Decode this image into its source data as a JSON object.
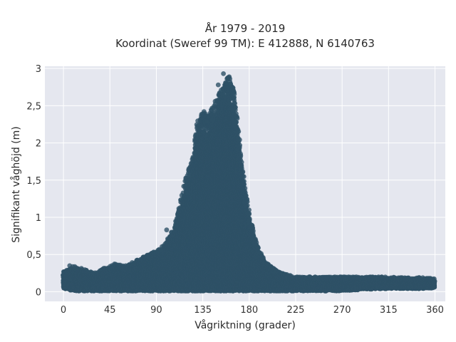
{
  "chart_data": {
    "type": "scatter",
    "title_lines": [
      "År 1979 - 2019",
      "Koordinat (Sweref 99 TM): E 412888, N 6140763"
    ],
    "xlabel": "Vågriktning (grader)",
    "ylabel": "Signifikant våghöjd (m)",
    "xlim": [
      -18,
      370
    ],
    "ylim": [
      -0.13,
      3.03
    ],
    "xticks": [
      0,
      45,
      90,
      135,
      180,
      225,
      270,
      315,
      360
    ],
    "xtick_labels": [
      "0",
      "45",
      "90",
      "135",
      "180",
      "225",
      "270",
      "315",
      "360"
    ],
    "yticks": [
      0,
      0.5,
      1,
      1.5,
      2,
      2.5,
      3
    ],
    "ytick_labels": [
      "0",
      "0,5",
      "1",
      "1,5",
      "2",
      "2,5",
      "3"
    ],
    "grid": true,
    "marker_color": "#2e5166",
    "background_color": "#e5e7ef",
    "series": [
      {
        "values_x": [
          0,
          10,
          20,
          30,
          40,
          50,
          60,
          70,
          80,
          90,
          95,
          100,
          105,
          110,
          115,
          120,
          125,
          130,
          135,
          140,
          145,
          150,
          155,
          160,
          165,
          170,
          175,
          180,
          185,
          190,
          195,
          200,
          205,
          210,
          220,
          225,
          235,
          250,
          270,
          290,
          310,
          330,
          345,
          360
        ],
        "values_y_max": [
          0.28,
          0.35,
          0.3,
          0.25,
          0.32,
          0.38,
          0.35,
          0.42,
          0.48,
          0.55,
          0.6,
          0.68,
          0.8,
          0.98,
          1.3,
          1.6,
          1.75,
          2.3,
          2.45,
          2.35,
          2.5,
          2.65,
          2.75,
          2.9,
          2.7,
          2.1,
          1.5,
          1.05,
          0.75,
          0.55,
          0.42,
          0.35,
          0.3,
          0.26,
          0.22,
          0.2,
          0.2,
          0.2,
          0.2,
          0.2,
          0.2,
          0.19,
          0.19,
          0.18
        ],
        "values_y_min": [
          0.05,
          0.02,
          0.02,
          0.02,
          0.02,
          0.02,
          0.02,
          0.02,
          0.02,
          0.02,
          0.02,
          0.02,
          0.02,
          0.02,
          0.02,
          0.02,
          0.02,
          0.02,
          0.02,
          0.02,
          0.02,
          0.02,
          0.02,
          0.02,
          0.02,
          0.02,
          0.02,
          0.02,
          0.02,
          0.02,
          0.02,
          0.02,
          0.02,
          0.02,
          0.02,
          0.02,
          0.02,
          0.02,
          0.02,
          0.04,
          0.05,
          0.05,
          0.05,
          0.06
        ]
      }
    ],
    "notable_points": [
      {
        "x": 155,
        "y": 2.93
      },
      {
        "x": 160,
        "y": 2.88
      },
      {
        "x": 150,
        "y": 2.78
      },
      {
        "x": 147,
        "y": 2.56
      },
      {
        "x": 100,
        "y": 0.83
      },
      {
        "x": 6,
        "y": 0.35
      },
      {
        "x": 82,
        "y": 0.47
      }
    ]
  }
}
